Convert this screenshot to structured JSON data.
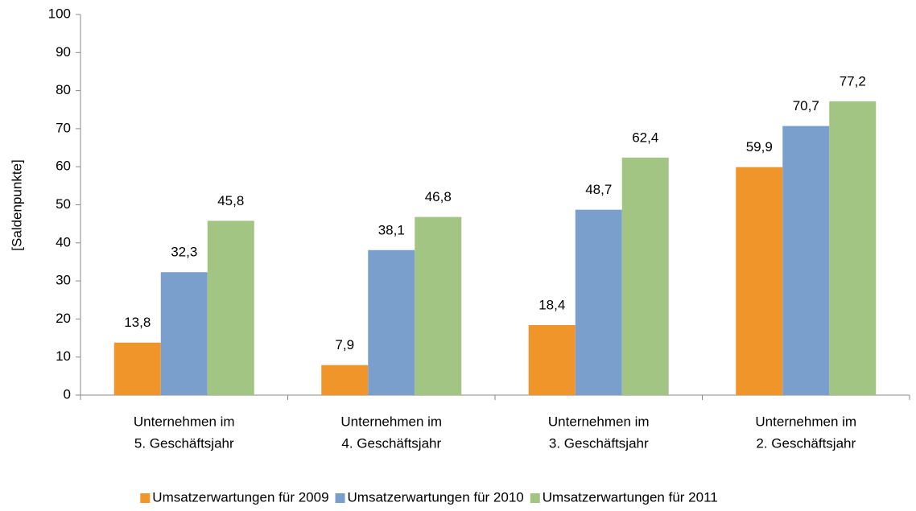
{
  "chart_data": {
    "type": "bar",
    "y_label": "[Saldenpunkte]",
    "categories": [
      [
        "Unternehmen im",
        "5. Geschäftsjahr"
      ],
      [
        "Unternehmen im",
        "4. Geschäftsjahr"
      ],
      [
        "Unternehmen im",
        "3. Geschäftsjahr"
      ],
      [
        "Unternehmen im",
        "2. Geschäftsjahr"
      ]
    ],
    "series": [
      {
        "name": "Umsatzerwartungen für 2009",
        "color": "#f0952a",
        "values": [
          13.8,
          7.9,
          18.4,
          59.9
        ],
        "value_labels": [
          "13,8",
          "7,9",
          "18,4",
          "59,9"
        ]
      },
      {
        "name": "Umsatzerwartungen für 2010",
        "color": "#7b9fcd",
        "values": [
          32.3,
          38.1,
          48.7,
          70.7
        ],
        "value_labels": [
          "32,3",
          "38,1",
          "48,7",
          "70,7"
        ]
      },
      {
        "name": "Umsatzerwartungen für 2011",
        "color": "#a2c584",
        "values": [
          45.8,
          46.8,
          62.4,
          77.2
        ],
        "value_labels": [
          "45,8",
          "46,8",
          "62,4",
          "77,2"
        ]
      }
    ],
    "ylim": [
      0,
      100
    ],
    "yticks": [
      0,
      10,
      20,
      30,
      40,
      50,
      60,
      70,
      80,
      90,
      100
    ],
    "legend": "bottom"
  }
}
